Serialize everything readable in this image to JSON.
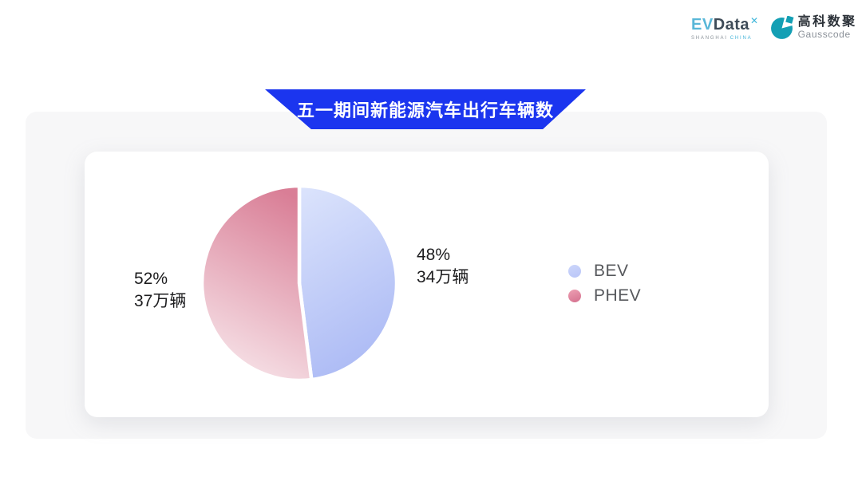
{
  "header": {
    "evdata": {
      "ev": "EV",
      "data": "Data",
      "sup_mark": "✕",
      "sub_left": "SHANGHAI",
      "sub_right": "CHINA"
    },
    "gausscode": {
      "cn": "高科数聚",
      "en": "Gausscode"
    }
  },
  "banner": {
    "title": "五一期间新能源汽车出行车辆数"
  },
  "chart_data": {
    "type": "pie",
    "title": "五一期间新能源汽车出行车辆数",
    "unit": "万辆",
    "start_angle_deg": 0,
    "direction": "clockwise",
    "legend_position": "right",
    "series": [
      {
        "name": "BEV",
        "percent": 48,
        "percent_label": "48%",
        "value": 34,
        "value_label": "34万辆",
        "label_side": "right",
        "color_start": "#dce4fc",
        "color_end": "#aebcf5",
        "marker_start": "#ccd6fa",
        "marker_end": "#b9c5f8"
      },
      {
        "name": "PHEV",
        "percent": 52,
        "percent_label": "52%",
        "value": 37,
        "value_label": "37万辆",
        "label_side": "left",
        "color_start": "#d97e96",
        "color_end": "#f7e4e9",
        "marker_start": "#eda0b3",
        "marker_end": "#d4708e"
      }
    ]
  },
  "colors": {
    "banner_blue": "#1b35ef",
    "panel_bg": "#f7f7f8",
    "card_bg": "#ffffff",
    "label_text": "#1d1d1f",
    "legend_text": "#57595d",
    "brand_teal": "#149fb4"
  }
}
